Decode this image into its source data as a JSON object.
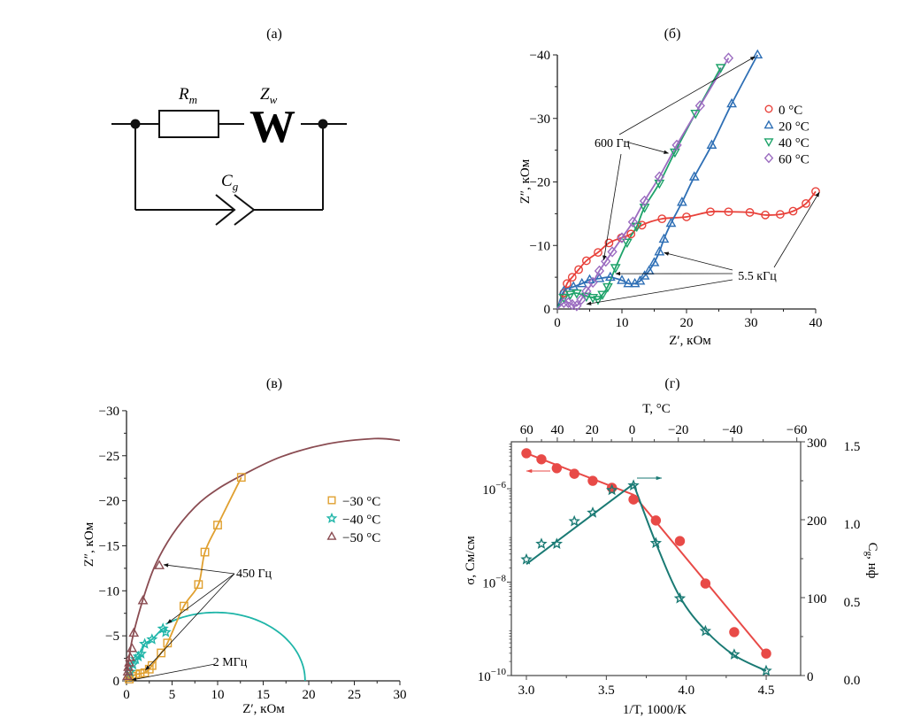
{
  "panels": {
    "a": {
      "label": "(а)",
      "resistor_label": "R",
      "resistor_sub": "m",
      "warburg_label": "Z",
      "warburg_sub": "w",
      "warburg_symbol": "W",
      "capacitor_label": "C",
      "capacitor_sub": "g"
    }
  },
  "chart_data": [
    {
      "id": "b",
      "panel_label": "(б)",
      "type": "scatter",
      "xlabel": "Z′, кОм",
      "ylabel": "Z″, кОм",
      "xlim": [
        0,
        40
      ],
      "ylim": [
        0,
        -40
      ],
      "xticks": [
        "0",
        "10",
        "20",
        "30",
        "40"
      ],
      "yticks": [
        "0",
        "−10",
        "−20",
        "−30",
        "−40"
      ],
      "legend_position": "right",
      "series": [
        {
          "name": "0 °C",
          "marker": "circle",
          "color": "#e8413a",
          "x": [
            1.0,
            1.5,
            2.3,
            3.3,
            4.5,
            6.3,
            8.0,
            9.9,
            11.4,
            13.1,
            16.2,
            20.0,
            23.7,
            26.5,
            29.8,
            32.2,
            34.5,
            36.5,
            38.5,
            40.0
          ],
          "y": [
            -2.5,
            -4.0,
            -5.0,
            -6.2,
            -7.6,
            -8.9,
            -10.4,
            -11.2,
            -11.8,
            -13.2,
            -14.2,
            -14.5,
            -15.3,
            -15.3,
            -15.2,
            -14.8,
            -14.9,
            -15.4,
            -16.6,
            -18.5
          ]
        },
        {
          "name": "20 °C",
          "marker": "triangle-up",
          "color": "#2e6fb5",
          "x": [
            1.0,
            2.5,
            3.8,
            5.0,
            6.5,
            8.2,
            10.0,
            11.0,
            12.0,
            12.8,
            13.5,
            14.2,
            15.0,
            15.8,
            16.5,
            17.6,
            19.3,
            21.2,
            23.9,
            27.0,
            31.0
          ],
          "y": [
            -2.8,
            -3.5,
            -4.0,
            -4.6,
            -4.8,
            -5.0,
            -4.5,
            -4.0,
            -4.0,
            -4.4,
            -5.2,
            -6.0,
            -7.3,
            -9.0,
            -11.0,
            -13.5,
            -16.8,
            -20.8,
            -25.8,
            -32.3,
            -40.0
          ]
        },
        {
          "name": "40 °C",
          "marker": "triangle-down",
          "color": "#1ea36a",
          "x": [
            1.0,
            2.0,
            3.0,
            4.5,
            5.5,
            6.3,
            7.0,
            7.8,
            9.0,
            10.8,
            12.3,
            13.5,
            15.8,
            18.2,
            21.4,
            25.3
          ],
          "y": [
            -1.8,
            -2.3,
            -2.5,
            -2.0,
            -1.8,
            -1.5,
            -2.3,
            -3.5,
            -6.5,
            -10.5,
            -13.0,
            -16.0,
            -19.8,
            -24.7,
            -30.8,
            -38.0
          ]
        },
        {
          "name": "60 °C",
          "marker": "diamond",
          "color": "#9b6cc0",
          "x": [
            1.0,
            1.7,
            2.3,
            3.0,
            3.7,
            4.5,
            5.5,
            6.5,
            7.5,
            8.5,
            10.0,
            11.7,
            13.5,
            15.8,
            18.5,
            22.1,
            26.5
          ],
          "y": [
            -1.0,
            -1.0,
            -0.7,
            -0.5,
            -1.5,
            -2.8,
            -4.2,
            -6.0,
            -7.5,
            -9.0,
            -11.2,
            -13.7,
            -17.0,
            -20.8,
            -25.8,
            -32.0,
            -39.5
          ]
        }
      ],
      "annotations": [
        {
          "text": "600 Гц",
          "points_to": [
            [
              31.0,
              -40.0
            ],
            [
              17.6,
              -24.8
            ],
            [
              7.6,
              -8.0
            ]
          ]
        },
        {
          "text": "5.5 кГц",
          "points_to": [
            [
              16.0,
              -9.0
            ],
            [
              8.5,
              -5.7
            ],
            [
              4.0,
              -0.9
            ],
            [
              40.0,
              -18.5
            ]
          ]
        }
      ]
    },
    {
      "id": "v",
      "panel_label": "(в)",
      "type": "scatter",
      "xlabel": "Z′, кОм",
      "ylabel": "Z″, кОм",
      "xlim": [
        0,
        30
      ],
      "ylim": [
        0,
        -30
      ],
      "xticks": [
        "0",
        "5",
        "10",
        "15",
        "20",
        "25",
        "30"
      ],
      "yticks": [
        "0",
        "−5",
        "−10",
        "−15",
        "−20",
        "−25",
        "−30"
      ],
      "legend_position": "right",
      "series": [
        {
          "name": "−30 °C",
          "marker": "square",
          "color": "#e0a030",
          "x": [
            0.3,
            0.6,
            1.0,
            1.5,
            2.0,
            2.5,
            2.8,
            3.8,
            4.5,
            6.3,
            7.9,
            8.6,
            10.0,
            12.6
          ],
          "y": [
            -0.2,
            -0.5,
            -0.7,
            -0.8,
            -0.9,
            -1.3,
            -1.7,
            -3.1,
            -4.2,
            -8.3,
            -10.7,
            -14.3,
            -17.3,
            -22.6
          ]
        },
        {
          "name": "−40 °C",
          "marker": "star",
          "color": "#1fb5a8",
          "x": [
            0.4,
            0.7,
            1.0,
            1.3,
            1.6,
            2.0,
            2.8,
            4.0,
            4.3
          ],
          "y": [
            -1.0,
            -1.8,
            -2.4,
            -2.7,
            -3.0,
            -4.1,
            -4.6,
            -5.8,
            -5.4
          ]
        },
        {
          "name": "−50 °C",
          "marker": "triangle-up",
          "color": "#8a4c52",
          "x": [
            0.1,
            0.15,
            0.2,
            0.3,
            0.4,
            0.6,
            0.8,
            1.8,
            3.6
          ],
          "y": [
            -0.5,
            -1.0,
            -1.5,
            -2.0,
            -2.6,
            -3.6,
            -5.3,
            -8.9,
            -12.8
          ]
        }
      ],
      "fit_curves": [
        {
          "series": "−50 °C",
          "color": "#8a4c52",
          "x": [
            0,
            0.5,
            1.5,
            3,
            5,
            7.5,
            10,
            13,
            17,
            22,
            27.2,
            30
          ],
          "y": [
            0,
            -4,
            -8,
            -12.5,
            -16.2,
            -19.3,
            -21.3,
            -23.0,
            -24.9,
            -26.3,
            -26.9,
            -26.7
          ]
        },
        {
          "series": "−40 °C",
          "color": "#1fb5a8",
          "semicircle_center_x": 9.8,
          "semicircle_radius": 9.8,
          "semicircle_peak": -7.6
        }
      ],
      "annotations": [
        {
          "text": "450 Гц",
          "points_to": [
            [
              3.8,
              -12.8
            ],
            [
              4.2,
              -6.3
            ],
            [
              1.8,
              -1.1
            ]
          ]
        },
        {
          "text": "2 МГц",
          "points_to": [
            [
              0.3,
              -0.1
            ]
          ]
        }
      ]
    },
    {
      "id": "g",
      "panel_label": "(г)",
      "type": "line",
      "xlabel": "1/T, 1000/K",
      "x2label": "T, °C",
      "ylabel": "σ, См/см",
      "y2label": "C_g, нф",
      "xlim": [
        2.9,
        4.7
      ],
      "xticks": [
        "3.0",
        "3.5",
        "4.0",
        "4.5"
      ],
      "x2ticks": [
        "60",
        "40",
        "20",
        "0",
        "−20",
        "−40",
        "−60"
      ],
      "yscale": "log",
      "ylim": [
        1e-10,
        1e-05
      ],
      "yticks": [
        "10−10",
        "10−8",
        "10−6"
      ],
      "y2lim_pF": [
        0,
        300
      ],
      "y2ticks": [
        "0",
        "100",
        "200",
        "300"
      ],
      "y3ticks": [
        "0.0",
        "0.5",
        "1.0",
        "1.5"
      ],
      "series": [
        {
          "name": "σ",
          "axis": "left",
          "marker": "filled-circle",
          "color": "#e84a47",
          "x": [
            3.0,
            3.094,
            3.19,
            3.3,
            3.415,
            3.535,
            3.67,
            3.81,
            3.96,
            4.12,
            4.3,
            4.5
          ],
          "log10_y": [
            -5.24,
            -5.37,
            -5.56,
            -5.68,
            -5.83,
            -5.98,
            -6.23,
            -6.68,
            -7.12,
            -8.03,
            -9.07,
            -9.53
          ]
        },
        {
          "name": "C_g",
          "axis": "right",
          "marker": "star",
          "color": "#1a7a74",
          "x": [
            3.0,
            3.094,
            3.19,
            3.3,
            3.415,
            3.535,
            3.67,
            3.81,
            3.96,
            4.12,
            4.3,
            4.5
          ],
          "y_pF": [
            149,
            169,
            169,
            198,
            209,
            238,
            244,
            170,
            99,
            57,
            27,
            6
          ]
        }
      ],
      "arrows": [
        {
          "series": "σ",
          "direction": "left"
        },
        {
          "series": "C_g",
          "direction": "right"
        }
      ]
    }
  ]
}
